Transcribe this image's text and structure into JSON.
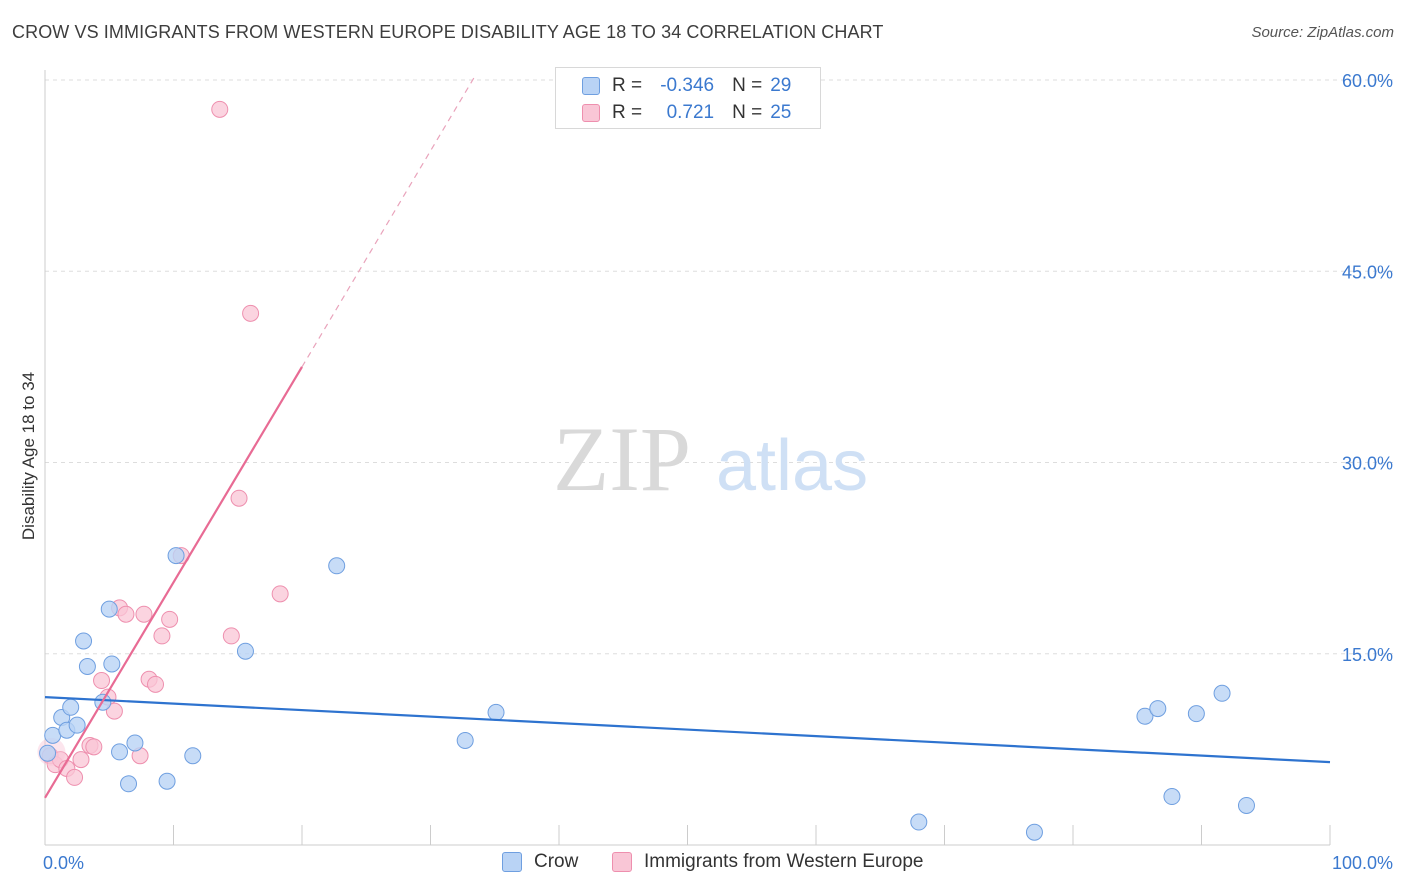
{
  "title": "CROW VS IMMIGRANTS FROM WESTERN EUROPE DISABILITY AGE 18 TO 34 CORRELATION CHART",
  "source": "Source: ZipAtlas.com",
  "watermark": {
    "zip": "ZIP",
    "atlas": "atlas"
  },
  "legend": {
    "r_label": "R =",
    "n_label": "N =",
    "rows": [
      {
        "r": "-0.346",
        "n": "29"
      },
      {
        "r": "0.721",
        "n": "25"
      }
    ]
  },
  "colors": {
    "crow_fill": "#b9d3f5",
    "crow_stroke": "#6f9fe0",
    "crow_line": "#2e73cf",
    "imm_fill": "#f9c6d6",
    "imm_stroke": "#ee8fae",
    "imm_line": "#e86b94",
    "axis_text": "#3b79cf",
    "grid": "#dddddd"
  },
  "chart_data": {
    "type": "scatter",
    "title": "CROW VS IMMIGRANTS FROM WESTERN EUROPE DISABILITY AGE 18 TO 34 CORRELATION CHART",
    "xlabel": "",
    "ylabel": "Disability Age 18 to 34",
    "xlim": [
      0,
      100
    ],
    "ylim": [
      0,
      62.8
    ],
    "x_tick_labels": [
      "0.0%",
      "100.0%"
    ],
    "y_ticks": [
      15,
      30,
      45,
      60
    ],
    "y_tick_labels": [
      "15.0%",
      "30.0%",
      "45.0%",
      "60.0%"
    ],
    "grid": true,
    "series": [
      {
        "name": "Crow",
        "r": -0.346,
        "n": 29,
        "points": [
          {
            "x": 0.2,
            "y": 7.2
          },
          {
            "x": 0.6,
            "y": 8.6
          },
          {
            "x": 1.3,
            "y": 10.0
          },
          {
            "x": 1.7,
            "y": 9.0
          },
          {
            "x": 2.0,
            "y": 10.8
          },
          {
            "x": 2.5,
            "y": 9.4
          },
          {
            "x": 3.0,
            "y": 16.0
          },
          {
            "x": 3.3,
            "y": 14.0
          },
          {
            "x": 5.0,
            "y": 18.5
          },
          {
            "x": 5.2,
            "y": 14.2
          },
          {
            "x": 4.5,
            "y": 11.2
          },
          {
            "x": 5.8,
            "y": 7.3
          },
          {
            "x": 6.5,
            "y": 4.8
          },
          {
            "x": 7.0,
            "y": 8.0
          },
          {
            "x": 9.5,
            "y": 5.0
          },
          {
            "x": 10.2,
            "y": 22.7
          },
          {
            "x": 11.5,
            "y": 7.0
          },
          {
            "x": 15.6,
            "y": 15.2
          },
          {
            "x": 22.7,
            "y": 21.9
          },
          {
            "x": 32.7,
            "y": 8.2
          },
          {
            "x": 35.1,
            "y": 10.4
          },
          {
            "x": 68.0,
            "y": 1.8
          },
          {
            "x": 77.0,
            "y": 1.0
          },
          {
            "x": 85.6,
            "y": 10.1
          },
          {
            "x": 86.6,
            "y": 10.7
          },
          {
            "x": 87.7,
            "y": 3.8
          },
          {
            "x": 89.6,
            "y": 10.3
          },
          {
            "x": 91.6,
            "y": 11.9
          },
          {
            "x": 93.5,
            "y": 3.1
          }
        ],
        "trend": {
          "x0": 0,
          "y0": 11.6,
          "x1": 100,
          "y1": 6.5
        }
      },
      {
        "name": "Immigrants from Western Europe",
        "r": 0.721,
        "n": 25,
        "points": [
          {
            "x": 0.4,
            "y": 7.0
          },
          {
            "x": 0.8,
            "y": 6.3
          },
          {
            "x": 1.2,
            "y": 6.7
          },
          {
            "x": 1.7,
            "y": 6.0
          },
          {
            "x": 2.3,
            "y": 5.3
          },
          {
            "x": 2.8,
            "y": 6.7
          },
          {
            "x": 3.5,
            "y": 7.8
          },
          {
            "x": 3.8,
            "y": 7.7
          },
          {
            "x": 4.4,
            "y": 12.9
          },
          {
            "x": 4.9,
            "y": 11.6
          },
          {
            "x": 5.4,
            "y": 10.5
          },
          {
            "x": 5.8,
            "y": 18.6
          },
          {
            "x": 6.3,
            "y": 18.1
          },
          {
            "x": 7.4,
            "y": 7.0
          },
          {
            "x": 7.7,
            "y": 18.1
          },
          {
            "x": 8.1,
            "y": 13.0
          },
          {
            "x": 8.6,
            "y": 12.6
          },
          {
            "x": 9.1,
            "y": 16.4
          },
          {
            "x": 9.7,
            "y": 17.7
          },
          {
            "x": 10.6,
            "y": 22.7
          },
          {
            "x": 13.6,
            "y": 57.7
          },
          {
            "x": 14.5,
            "y": 16.4
          },
          {
            "x": 15.1,
            "y": 27.2
          },
          {
            "x": 16.0,
            "y": 41.7
          },
          {
            "x": 18.3,
            "y": 19.7
          }
        ],
        "trend": {
          "x0": 0,
          "y0": 3.7,
          "x1": 20,
          "y1": 37.5
        },
        "trend_dashed": {
          "x0": 20,
          "y0": 37.5,
          "x1": 33.4,
          "y1": 60.2
        }
      }
    ]
  },
  "bottom_legend": [
    {
      "label": "Crow"
    },
    {
      "label": "Immigrants from Western Europe"
    }
  ]
}
